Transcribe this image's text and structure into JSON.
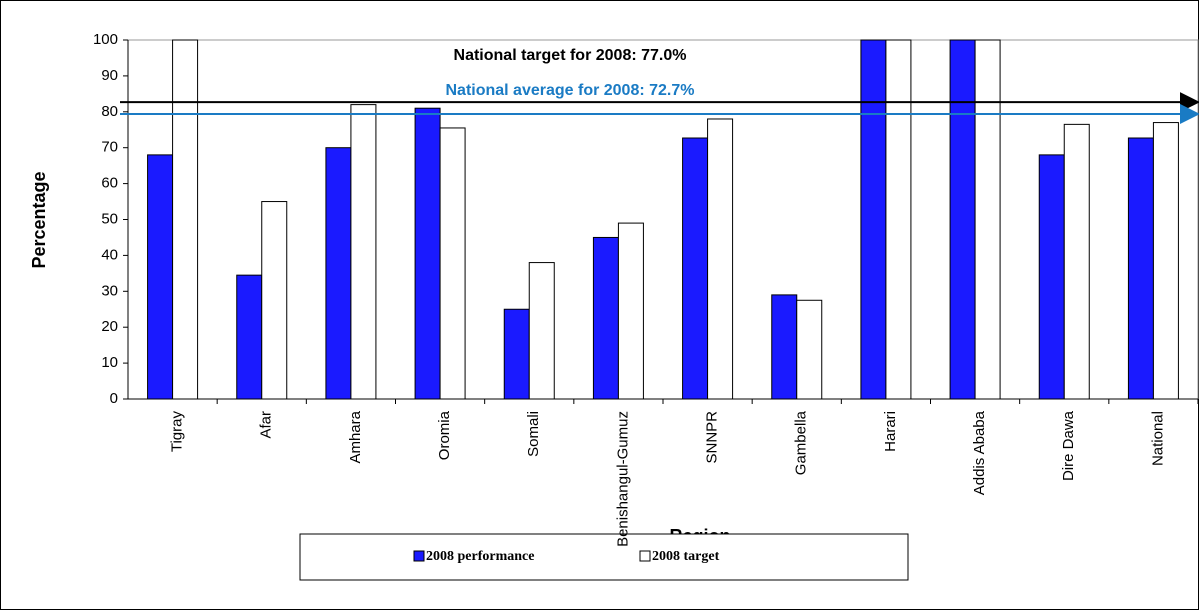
{
  "chart_data": {
    "type": "bar",
    "x_label": "Region",
    "y_label": "Percentage",
    "categories": [
      "Tigray",
      "Afar",
      "Amhara",
      "Oromia",
      "Somali",
      "Benishangul-Gumuz",
      "SNNPR",
      "Gambella",
      "Harari",
      "Addis Ababa",
      "Dire Dawa",
      "National"
    ],
    "series": [
      {
        "name": "2008 performance",
        "color": "#1a1aff",
        "values": [
          68,
          34.5,
          70,
          81,
          25,
          45,
          72.7,
          29,
          100,
          100,
          68,
          72.7
        ]
      },
      {
        "name": "2008 target",
        "color": "#ffffff",
        "values": [
          100,
          55,
          82,
          75.5,
          38,
          49,
          78,
          27.5,
          100,
          100,
          76.5,
          77
        ]
      }
    ],
    "ylim": [
      0,
      100
    ],
    "yticks": [
      0,
      10,
      20,
      30,
      40,
      50,
      60,
      70,
      80,
      90,
      100
    ],
    "annotations": [
      {
        "text": "National target for 2008: 77.0%",
        "line": 82.7,
        "color": "#000000"
      },
      {
        "text": "National average for 2008: 72.7%",
        "line": 79.4,
        "color": "#1a7bc4"
      }
    ]
  }
}
